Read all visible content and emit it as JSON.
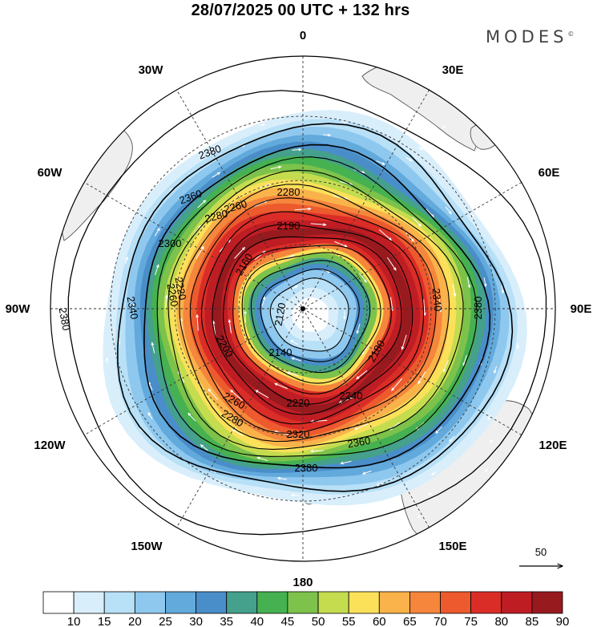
{
  "title": "28/07/2025  00 UTC  + 132 hrs",
  "brand": "MODES",
  "brand_mark": "©",
  "longitude_labels": {
    "n0": "0",
    "e30": "30E",
    "e60": "60E",
    "e90": "90E",
    "e120": "120E",
    "e150": "150E",
    "s180": "180",
    "w150": "150W",
    "w120": "120W",
    "w90": "90W",
    "w60": "60W",
    "w30": "30W"
  },
  "contour_labels": [
    "2380",
    "2360",
    "2280",
    "2190",
    "2300",
    "2260",
    "2220",
    "2160",
    "2280",
    "2260",
    "2120",
    "2140",
    "2180",
    "2200",
    "2220",
    "2240",
    "2260",
    "2280",
    "2320",
    "2340",
    "2360",
    "2380",
    "2340",
    "2380",
    "2380"
  ],
  "reference_vector": {
    "label": "50"
  },
  "colorbar": {
    "levels": [
      "10",
      "15",
      "20",
      "25",
      "30",
      "35",
      "40",
      "45",
      "50",
      "55",
      "60",
      "65",
      "70",
      "75",
      "80",
      "85",
      "90"
    ],
    "colors": [
      "#ffffff",
      "#d9eefb",
      "#b8e0f7",
      "#8fc8ee",
      "#62a9dc",
      "#4a8ec9",
      "#45a08c",
      "#46b150",
      "#7cc24b",
      "#c5dc4f",
      "#fbe05a",
      "#f9b34a",
      "#f5863c",
      "#ec5a2e",
      "#db2d27",
      "#bf1d24",
      "#971a1f"
    ]
  },
  "colors": {
    "land": "#efefef",
    "coast": "#555555",
    "contour": "#000000",
    "vector": "#ffffff",
    "grid": "#333333"
  }
}
